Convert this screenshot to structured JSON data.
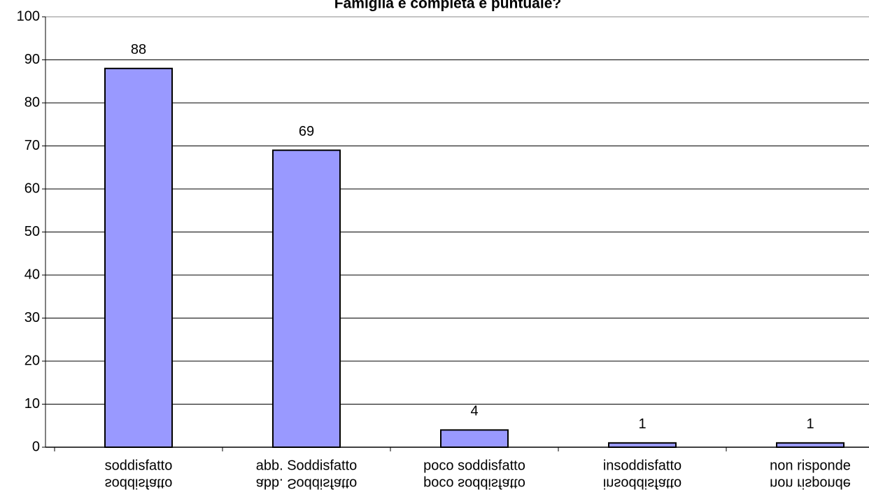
{
  "chart_data": {
    "type": "bar",
    "title": "Famiglia è completa e puntuale?",
    "categories": [
      "soddisfatto",
      "abb. Soddisfatto",
      "poco soddisfatto",
      "insoddisfatto",
      "non risponde"
    ],
    "values": [
      88,
      69,
      4,
      1,
      1
    ],
    "color": "#9999ff",
    "ylim": [
      0,
      100
    ],
    "yticks": [
      0,
      10,
      20,
      30,
      40,
      50,
      60,
      70,
      80,
      90,
      100
    ],
    "grid": true
  }
}
